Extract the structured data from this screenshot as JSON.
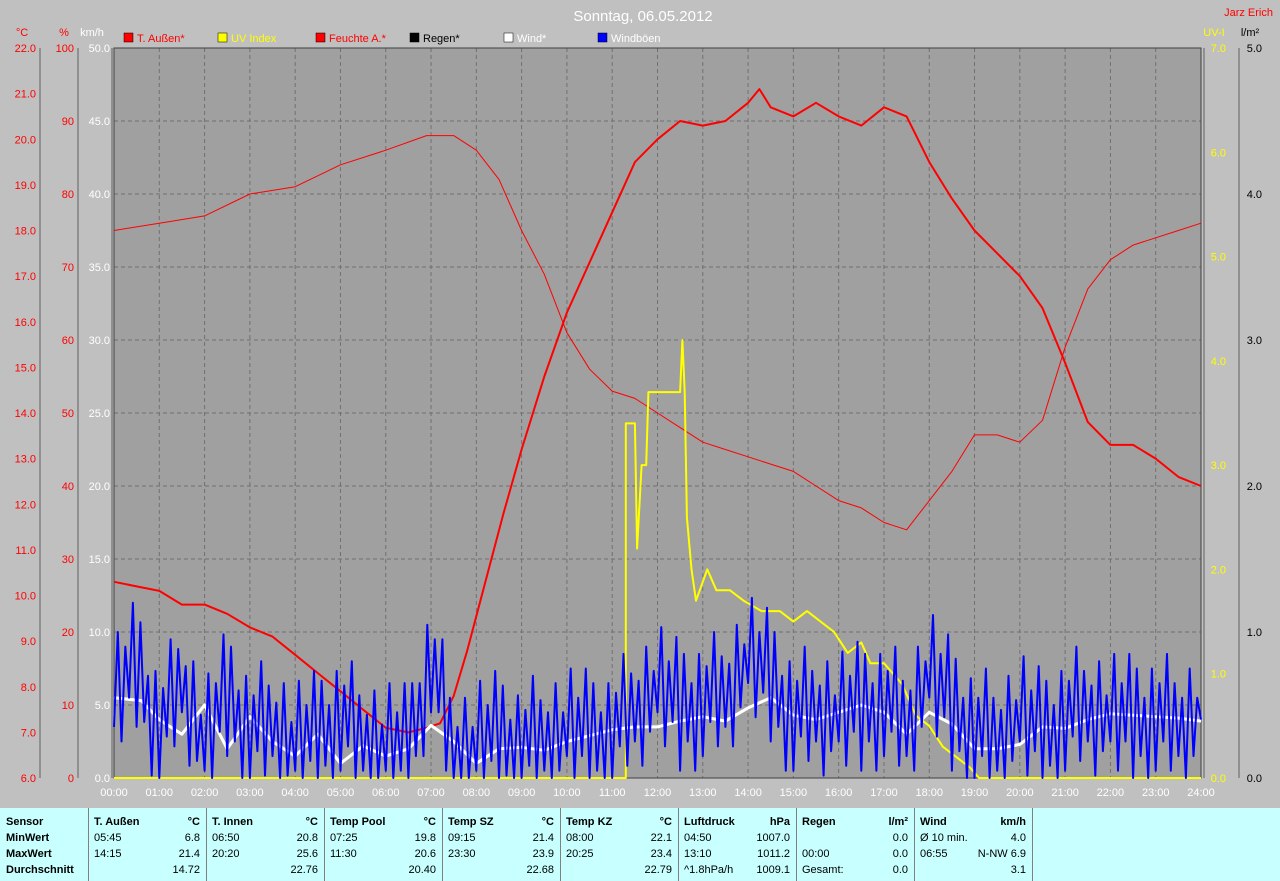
{
  "title": "Sonntag, 06.05.2012",
  "author": "Jarz Erich",
  "legend": [
    {
      "label": "T. Außen*",
      "color": "#ff0000"
    },
    {
      "label": "UV Index",
      "color": "#ffff00"
    },
    {
      "label": "Feuchte A.*",
      "color": "#ff0000"
    },
    {
      "label": "Regen*",
      "color": "#000000"
    },
    {
      "label": "Wind*",
      "color": "#ffffff"
    },
    {
      "label": "Windböen",
      "color": "#0000ff"
    }
  ],
  "axis_units": {
    "temp": "°C",
    "hum": "%",
    "wind": "km/h",
    "uv": "UV-I",
    "rain": "l/m²"
  },
  "chart_data": {
    "type": "line",
    "title": "Sonntag, 06.05.2012",
    "x_labels": [
      "00:00",
      "01:00",
      "02:00",
      "03:00",
      "04:00",
      "05:00",
      "06:00",
      "07:00",
      "08:00",
      "09:00",
      "10:00",
      "11:00",
      "12:00",
      "13:00",
      "14:00",
      "15:00",
      "16:00",
      "17:00",
      "18:00",
      "19:00",
      "20:00",
      "21:00",
      "22:00",
      "23:00",
      "24:00"
    ],
    "axes": {
      "temp": {
        "unit": "°C",
        "range": [
          6.0,
          22.0
        ],
        "ticks": [
          "6.0",
          "7.0",
          "8.0",
          "9.0",
          "10.0",
          "11.0",
          "12.0",
          "13.0",
          "14.0",
          "15.0",
          "16.0",
          "17.0",
          "18.0",
          "19.0",
          "20.0",
          "21.0",
          "22.0"
        ]
      },
      "hum": {
        "unit": "%",
        "range": [
          0,
          100
        ],
        "ticks": [
          "0",
          "10",
          "20",
          "30",
          "40",
          "50",
          "60",
          "70",
          "80",
          "90",
          "100"
        ]
      },
      "wind": {
        "unit": "km/h",
        "range": [
          0,
          50
        ],
        "ticks": [
          "0.0",
          "5.0",
          "10.0",
          "15.0",
          "20.0",
          "25.0",
          "30.0",
          "35.0",
          "40.0",
          "45.0",
          "50.0"
        ]
      },
      "uv": {
        "unit": "UV-I",
        "range": [
          0,
          7
        ],
        "ticks": [
          "0.0",
          "1.0",
          "2.0",
          "3.0",
          "4.0",
          "5.0",
          "6.0",
          "7.0"
        ]
      },
      "rain": {
        "unit": "l/m²",
        "range": [
          0,
          5
        ],
        "ticks": [
          "0.0",
          "1.0",
          "2.0",
          "3.0",
          "4.0",
          "5.0"
        ]
      }
    },
    "grid": true,
    "legend_position": "top",
    "series": [
      {
        "name": "T. Außen*",
        "axis": "temp",
        "color": "#ff0000",
        "width": 2,
        "points": [
          [
            0,
            10.3
          ],
          [
            0.5,
            10.2
          ],
          [
            1,
            10.1
          ],
          [
            1.5,
            9.8
          ],
          [
            2,
            9.8
          ],
          [
            2.5,
            9.6
          ],
          [
            3,
            9.3
          ],
          [
            3.5,
            9.1
          ],
          [
            4,
            8.7
          ],
          [
            4.5,
            8.3
          ],
          [
            5,
            7.9
          ],
          [
            5.5,
            7.5
          ],
          [
            6,
            7.1
          ],
          [
            6.5,
            7.0
          ],
          [
            6.9,
            7.1
          ],
          [
            7.2,
            7.2
          ],
          [
            7.5,
            7.8
          ],
          [
            7.8,
            8.8
          ],
          [
            8.2,
            10.3
          ],
          [
            8.6,
            11.8
          ],
          [
            9,
            13.2
          ],
          [
            9.5,
            14.8
          ],
          [
            10,
            16.2
          ],
          [
            10.5,
            17.3
          ],
          [
            11,
            18.4
          ],
          [
            11.5,
            19.5
          ],
          [
            12,
            20.0
          ],
          [
            12.5,
            20.4
          ],
          [
            13,
            20.3
          ],
          [
            13.5,
            20.4
          ],
          [
            14,
            20.8
          ],
          [
            14.25,
            21.1
          ],
          [
            14.5,
            20.7
          ],
          [
            15,
            20.5
          ],
          [
            15.5,
            20.8
          ],
          [
            16,
            20.5
          ],
          [
            16.5,
            20.3
          ],
          [
            17,
            20.7
          ],
          [
            17.5,
            20.5
          ],
          [
            18,
            19.5
          ],
          [
            18.5,
            18.7
          ],
          [
            19,
            18.0
          ],
          [
            19.5,
            17.5
          ],
          [
            20,
            17.0
          ],
          [
            20.5,
            16.3
          ],
          [
            21,
            15.1
          ],
          [
            21.5,
            13.8
          ],
          [
            22,
            13.3
          ],
          [
            22.5,
            13.3
          ],
          [
            23,
            13.0
          ],
          [
            23.5,
            12.6
          ],
          [
            24,
            12.4
          ]
        ]
      },
      {
        "name": "Feuchte A.*",
        "axis": "hum",
        "color": "#ff0000",
        "width": 1,
        "points": [
          [
            0,
            75
          ],
          [
            1,
            76
          ],
          [
            2,
            77
          ],
          [
            3,
            80
          ],
          [
            4,
            81
          ],
          [
            5,
            84
          ],
          [
            6,
            86
          ],
          [
            6.9,
            88
          ],
          [
            7.5,
            88
          ],
          [
            8,
            86
          ],
          [
            8.5,
            82
          ],
          [
            9,
            75
          ],
          [
            9.5,
            69
          ],
          [
            10,
            61
          ],
          [
            10.5,
            56
          ],
          [
            11,
            53
          ],
          [
            11.5,
            52
          ],
          [
            12,
            50
          ],
          [
            12.5,
            48
          ],
          [
            13,
            46
          ],
          [
            13.5,
            45
          ],
          [
            14,
            44
          ],
          [
            14.5,
            43
          ],
          [
            15,
            42
          ],
          [
            15.5,
            40
          ],
          [
            16,
            38
          ],
          [
            16.5,
            37
          ],
          [
            17,
            35
          ],
          [
            17.5,
            34
          ],
          [
            18,
            38
          ],
          [
            18.5,
            42
          ],
          [
            19,
            47
          ],
          [
            19.5,
            47
          ],
          [
            20,
            46
          ],
          [
            20.5,
            49
          ],
          [
            21,
            59
          ],
          [
            21.5,
            67
          ],
          [
            22,
            71
          ],
          [
            22.5,
            73
          ],
          [
            23,
            74
          ],
          [
            23.5,
            75
          ],
          [
            24,
            76
          ]
        ]
      },
      {
        "name": "UV Index",
        "axis": "uv",
        "color": "#ffff00",
        "width": 2,
        "points": [
          [
            0,
            0
          ],
          [
            11.3,
            0
          ],
          [
            11.3,
            3.4
          ],
          [
            11.5,
            3.4
          ],
          [
            11.55,
            2.2
          ],
          [
            11.65,
            3.0
          ],
          [
            11.75,
            3.0
          ],
          [
            11.8,
            3.7
          ],
          [
            12.5,
            3.7
          ],
          [
            12.55,
            4.2
          ],
          [
            12.6,
            3.7
          ],
          [
            12.65,
            2.5
          ],
          [
            12.75,
            2.0
          ],
          [
            12.85,
            1.7
          ],
          [
            13.1,
            2.0
          ],
          [
            13.3,
            1.8
          ],
          [
            13.6,
            1.8
          ],
          [
            13.9,
            1.7
          ],
          [
            14.3,
            1.6
          ],
          [
            14.7,
            1.6
          ],
          [
            15,
            1.5
          ],
          [
            15.3,
            1.6
          ],
          [
            15.6,
            1.5
          ],
          [
            15.9,
            1.4
          ],
          [
            16.2,
            1.2
          ],
          [
            16.5,
            1.3
          ],
          [
            16.7,
            1.1
          ],
          [
            17,
            1.1
          ],
          [
            17.4,
            0.9
          ],
          [
            17.7,
            0.6
          ],
          [
            18,
            0.5
          ],
          [
            18.3,
            0.3
          ],
          [
            18.6,
            0.2
          ],
          [
            18.9,
            0.1
          ],
          [
            19.1,
            0
          ],
          [
            24,
            0
          ]
        ]
      },
      {
        "name": "Wind*",
        "axis": "wind",
        "color": "#ffffff",
        "width": 3,
        "points": [
          [
            0,
            5.5
          ],
          [
            0.6,
            5.3
          ],
          [
            1,
            4.0
          ],
          [
            1.5,
            3.0
          ],
          [
            2,
            5.0
          ],
          [
            2.5,
            2.0
          ],
          [
            3,
            4.2
          ],
          [
            3.5,
            2.5
          ],
          [
            4,
            1.5
          ],
          [
            4.5,
            3.0
          ],
          [
            5,
            1.0
          ],
          [
            5.5,
            2.2
          ],
          [
            6,
            1.5
          ],
          [
            6.5,
            2.0
          ],
          [
            7,
            3.6
          ],
          [
            7.5,
            2.5
          ],
          [
            8,
            1.0
          ],
          [
            8.5,
            2.0
          ],
          [
            9,
            2.1
          ],
          [
            9.5,
            1.9
          ],
          [
            10,
            2.5
          ],
          [
            10.5,
            2.9
          ],
          [
            11,
            3.3
          ],
          [
            11.5,
            3.5
          ],
          [
            12,
            3.5
          ],
          [
            12.5,
            3.9
          ],
          [
            13,
            4.2
          ],
          [
            13.5,
            3.9
          ],
          [
            14,
            4.8
          ],
          [
            14.5,
            5.5
          ],
          [
            15,
            4.3
          ],
          [
            15.5,
            4.0
          ],
          [
            16,
            4.5
          ],
          [
            16.5,
            5.0
          ],
          [
            17,
            4.5
          ],
          [
            17.5,
            3.0
          ],
          [
            18,
            4.5
          ],
          [
            18.5,
            3.7
          ],
          [
            19,
            2.0
          ],
          [
            19.5,
            2.0
          ],
          [
            20,
            2.3
          ],
          [
            20.5,
            3.5
          ],
          [
            21,
            3.4
          ],
          [
            21.5,
            4.0
          ],
          [
            22,
            4.4
          ],
          [
            22.5,
            4.3
          ],
          [
            23,
            4.2
          ],
          [
            23.5,
            4.1
          ],
          [
            24,
            3.9
          ]
        ]
      },
      {
        "name": "Windböen",
        "axis": "wind",
        "color": "#0000ff",
        "width": 2,
        "jagged": true,
        "points": [
          [
            0,
            5
          ],
          [
            0.5,
            8
          ],
          [
            1,
            3
          ],
          [
            1.5,
            7
          ],
          [
            2,
            2
          ],
          [
            2.5,
            6
          ],
          [
            3,
            3
          ],
          [
            3.5,
            4
          ],
          [
            4,
            2
          ],
          [
            4.5,
            3
          ],
          [
            5,
            4
          ],
          [
            5.5,
            3
          ],
          [
            6,
            2
          ],
          [
            6.5,
            2
          ],
          [
            7,
            8
          ],
          [
            7.5,
            2
          ],
          [
            8,
            2
          ],
          [
            8.5,
            3
          ],
          [
            9,
            2
          ],
          [
            9.5,
            3
          ],
          [
            10,
            3
          ],
          [
            10.5,
            3
          ],
          [
            11,
            3
          ],
          [
            11.5,
            5
          ],
          [
            12,
            6
          ],
          [
            12.5,
            5
          ],
          [
            13,
            5
          ],
          [
            13.5,
            6
          ],
          [
            14,
            8
          ],
          [
            14.5,
            7
          ],
          [
            15,
            4
          ],
          [
            15.5,
            5
          ],
          [
            16,
            4
          ],
          [
            16.5,
            5
          ],
          [
            17,
            5
          ],
          [
            17.5,
            4
          ],
          [
            18,
            7
          ],
          [
            18.5,
            5
          ],
          [
            19,
            3
          ],
          [
            19.5,
            3
          ],
          [
            20,
            4
          ],
          [
            20.5,
            3
          ],
          [
            21,
            4
          ],
          [
            21.5,
            5
          ],
          [
            22,
            4
          ],
          [
            22.5,
            4
          ],
          [
            23,
            4
          ],
          [
            23.5,
            4
          ],
          [
            24,
            4
          ]
        ]
      }
    ]
  },
  "stats": {
    "row_labels": [
      "Sensor",
      "MinWert",
      "MaxWert",
      "Durchschnitt"
    ],
    "columns": [
      {
        "head": "T. Außen",
        "unit": "°C",
        "rows": [
          [
            "05:45",
            "6.8"
          ],
          [
            "14:15",
            "21.4"
          ],
          [
            "",
            "14.72"
          ]
        ]
      },
      {
        "head": "T. Innen",
        "unit": "°C",
        "rows": [
          [
            "06:50",
            "20.8"
          ],
          [
            "20:20",
            "25.6"
          ],
          [
            "",
            "22.76"
          ]
        ]
      },
      {
        "head": "Temp Pool",
        "unit": "°C",
        "rows": [
          [
            "07:25",
            "19.8"
          ],
          [
            "11:30",
            "20.6"
          ],
          [
            "",
            "20.40"
          ]
        ]
      },
      {
        "head": "Temp SZ",
        "unit": "°C",
        "rows": [
          [
            "09:15",
            "21.4"
          ],
          [
            "23:30",
            "23.9"
          ],
          [
            "",
            "22.68"
          ]
        ]
      },
      {
        "head": "Temp KZ",
        "unit": "°C",
        "rows": [
          [
            "08:00",
            "22.1"
          ],
          [
            "20:25",
            "23.4"
          ],
          [
            "",
            "22.79"
          ]
        ]
      },
      {
        "head": "Luftdruck",
        "unit": "hPa",
        "rows": [
          [
            "04:50",
            "1007.0"
          ],
          [
            "13:10",
            "1011.2"
          ],
          [
            "^1.8hPa/h",
            "1009.1"
          ]
        ]
      },
      {
        "head": "Regen",
        "unit": "l/m²",
        "rows": [
          [
            "",
            "0.0"
          ],
          [
            "00:00",
            "0.0"
          ],
          [
            "Gesamt:",
            "0.0"
          ]
        ]
      },
      {
        "head": "Wind",
        "unit": "km/h",
        "rows": [
          [
            "Ø 10 min.",
            "4.0"
          ],
          [
            "06:55",
            "N-NW 6.9"
          ],
          [
            "",
            "3.1"
          ]
        ]
      }
    ]
  }
}
